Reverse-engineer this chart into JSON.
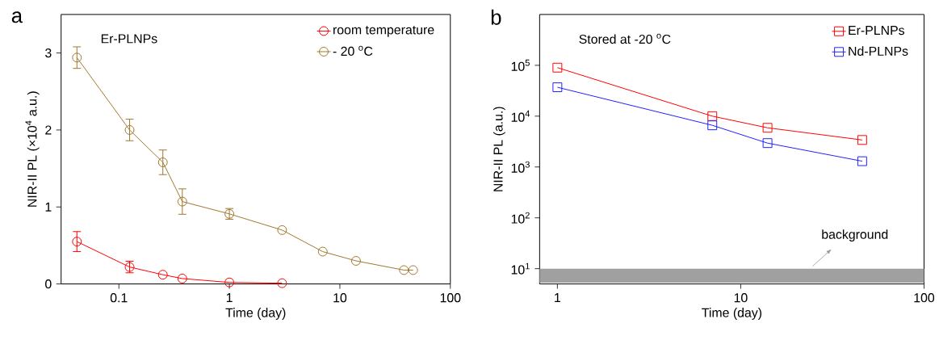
{
  "chart_data": [
    {
      "type": "line",
      "annotations": [
        "a",
        "Er-PLNPs"
      ],
      "xlabel": "Time (day)",
      "ylabel": "NIR-II PL (×10$^{4}$ a.u.)",
      "xlim": [
        0.03,
        100
      ],
      "ylim": [
        0,
        3.5
      ],
      "xticks": [
        0.1,
        1,
        10,
        100
      ],
      "yticks": [
        0,
        1,
        2,
        3
      ],
      "log": "x",
      "legend": "top right",
      "marker": "circle",
      "series": [
        {
          "name": "room temperature",
          "color": "#ff0000",
          "x": [
            0.0417,
            0.125,
            0.25,
            0.375,
            1,
            3
          ],
          "values": [
            0.55,
            0.22,
            0.12,
            0.07,
            0.02,
            0.01
          ],
          "errors": [
            0.13,
            0.075,
            null,
            null,
            null,
            null
          ]
        },
        {
          "name": "- 20 $^{o}$C",
          "color": "#a0782c",
          "x": [
            0.0417,
            0.125,
            0.25,
            0.375,
            1,
            3,
            7,
            14,
            38,
            46
          ],
          "values": [
            2.94,
            2.0,
            1.58,
            1.07,
            0.91,
            0.7,
            0.42,
            0.3,
            0.18,
            0.18
          ],
          "errors": [
            0.14,
            0.14,
            0.16,
            0.165,
            0.07,
            null,
            null,
            null,
            null,
            null
          ]
        }
      ]
    },
    {
      "type": "line",
      "annotations": [
        "b",
        "Stored at -20 $^{o}$C"
      ],
      "xlabel": "Time (day)",
      "ylabel": "NIR-II PL (a.u.)",
      "xlim": [
        0.8,
        100
      ],
      "ylim": [
        5,
        1000000
      ],
      "xticks": [
        1,
        10,
        100
      ],
      "yticks": [
        {
          "value": 10,
          "label": "10$^{1}$"
        },
        {
          "value": 100,
          "label": "10$^{2}$"
        },
        {
          "value": 1000,
          "label": "10$^{3}$"
        },
        {
          "value": 10000,
          "label": "10$^{4}$"
        },
        {
          "value": 100000,
          "label": "10$^{5}$"
        }
      ],
      "log": "xy",
      "legend": "top right",
      "marker": "square",
      "x": [
        1,
        7,
        14,
        46
      ],
      "series": [
        {
          "name": "Er-PLNPs",
          "color": "#ff0000",
          "values": [
            90000,
            10000,
            5900,
            3400
          ]
        },
        {
          "name": "Nd-PLNPs",
          "color": "#2020ff",
          "values": [
            37000,
            6600,
            2950,
            1300
          ]
        }
      ],
      "bands": [
        {
          "axis": "y",
          "from": 5.3,
          "to": 10,
          "label": "background",
          "color": "#a0a0a0"
        }
      ]
    }
  ]
}
